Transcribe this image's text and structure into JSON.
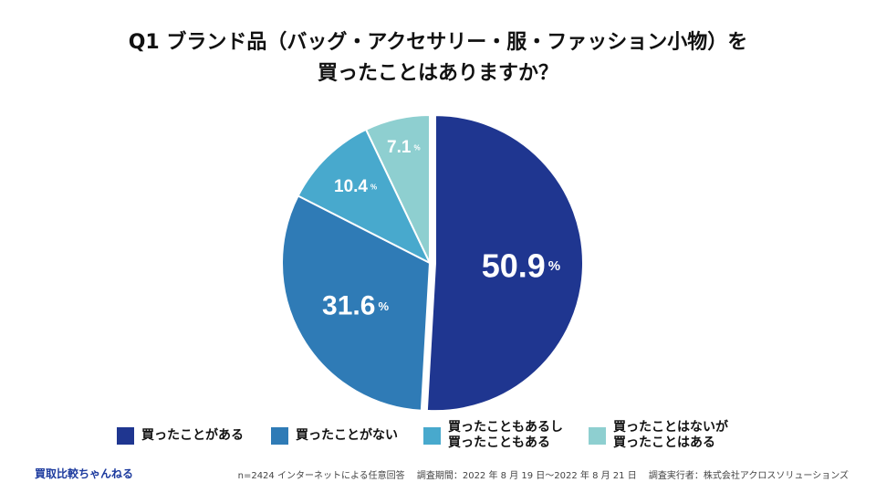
{
  "title": {
    "line1": "Q1 ブランド品（バッグ・アクセサリー・服・ファッション小物）を",
    "line2": "買ったことはありますか？"
  },
  "chart_data": {
    "type": "pie",
    "unit": "%",
    "start_angle_deg": 0,
    "direction": "clockwise",
    "categories": [
      "買ったことがある",
      "買ったことがない",
      "買ったこともあるし\n買ったこともある",
      "買ったことはないが\n買ったことはある"
    ],
    "values": [
      50.9,
      31.6,
      10.4,
      7.1
    ],
    "labels": [
      "50.9",
      "31.6",
      "10.4",
      "7.1"
    ],
    "colors": [
      "#1f3690",
      "#2f7bb6",
      "#48a9cd",
      "#8ecfd0"
    ],
    "legend_position": "bottom"
  },
  "footer": {
    "brand": "買取比較ちゃんねる",
    "sample": "n=2424 インターネットによる任意回答",
    "period": "調査期間：2022 年 8 月 19 日〜2022 年 8 月 21 日",
    "surveyor": "調査実行者：株式会社アクロスソリューションズ"
  }
}
